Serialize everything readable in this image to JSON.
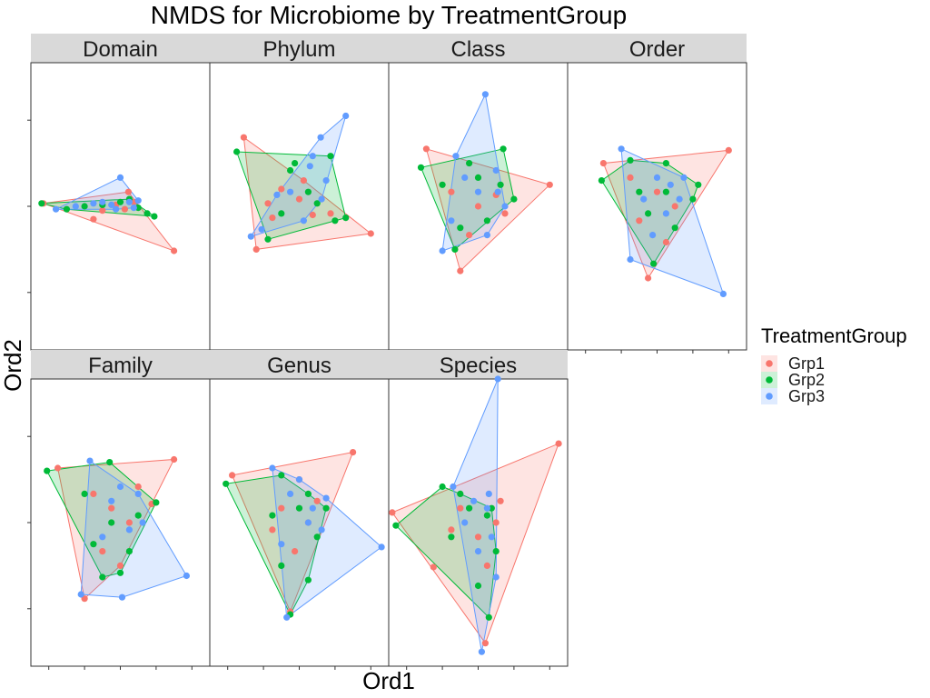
{
  "chart_data": {
    "type": "scatter",
    "title": "NMDS for Microbiome by TreatmentGroup",
    "xlabel": "Ord1",
    "ylabel": "Ord2",
    "grid": false,
    "hull": true,
    "legend": {
      "title": "TreatmentGroup",
      "placement": "right",
      "entries": [
        {
          "name": "Grp1",
          "color": "#F8766D"
        },
        {
          "name": "Grp2",
          "color": "#00BA38"
        },
        {
          "name": "Grp3",
          "color": "#619CFF"
        }
      ]
    },
    "xlim": [
      -1.0,
      1.0
    ],
    "ylim": [
      -1.0,
      1.0
    ],
    "x_ticks": [
      -0.8,
      -0.4,
      0.0,
      0.4,
      0.8
    ],
    "y_ticks": [
      -0.6,
      0.0,
      0.6
    ],
    "facets": [
      {
        "label": "Domain",
        "series": [
          {
            "name": "Grp1",
            "points": [
              [
                -0.86,
                0.02
              ],
              [
                -0.3,
                -0.09
              ],
              [
                0.09,
                0.1
              ],
              [
                0.6,
                -0.31
              ],
              [
                -0.2,
                -0.03
              ],
              [
                -0.05,
                0.01
              ],
              [
                0.05,
                -0.02
              ],
              [
                0.15,
                0.03
              ]
            ]
          },
          {
            "name": "Grp2",
            "points": [
              [
                -0.88,
                0.02
              ],
              [
                -0.6,
                -0.02
              ],
              [
                0.3,
                -0.05
              ],
              [
                0.38,
                -0.07
              ],
              [
                0.1,
                0.05
              ],
              [
                -0.4,
                0.0
              ],
              [
                -0.2,
                0.01
              ],
              [
                0.0,
                0.03
              ],
              [
                0.2,
                -0.01
              ]
            ]
          },
          {
            "name": "Grp3",
            "points": [
              [
                -0.72,
                -0.02
              ],
              [
                0.0,
                0.2
              ],
              [
                0.2,
                0.04
              ],
              [
                -0.5,
                0.0
              ],
              [
                -0.3,
                0.02
              ],
              [
                -0.1,
                0.01
              ],
              [
                0.1,
                0.03
              ],
              [
                -0.05,
                -0.02
              ],
              [
                0.15,
                -0.01
              ],
              [
                -0.2,
                0.03
              ]
            ]
          }
        ]
      },
      {
        "label": "Phylum",
        "series": [
          {
            "name": "Grp1",
            "points": [
              [
                -0.62,
                0.48
              ],
              [
                -0.48,
                -0.3
              ],
              [
                0.8,
                -0.19
              ],
              [
                0.35,
                -0.05
              ],
              [
                -0.35,
                0.02
              ],
              [
                -0.2,
                0.12
              ],
              [
                0.0,
                0.05
              ],
              [
                0.15,
                -0.06
              ],
              [
                -0.3,
                -0.08
              ],
              [
                0.05,
                0.18
              ]
            ]
          },
          {
            "name": "Grp2",
            "points": [
              [
                -0.7,
                0.38
              ],
              [
                -0.35,
                -0.23
              ],
              [
                0.52,
                -0.08
              ],
              [
                0.35,
                0.35
              ],
              [
                0.4,
                -0.1
              ],
              [
                -0.1,
                0.25
              ],
              [
                0.1,
                0.1
              ],
              [
                -0.2,
                -0.05
              ],
              [
                0.2,
                0.02
              ],
              [
                -0.05,
                0.3
              ]
            ]
          },
          {
            "name": "Grp3",
            "points": [
              [
                0.52,
                0.63
              ],
              [
                0.24,
                0.48
              ],
              [
                -0.54,
                -0.21
              ],
              [
                -0.42,
                -0.16
              ],
              [
                0.12,
                0.28
              ],
              [
                0.25,
                0.05
              ],
              [
                -0.1,
                0.1
              ],
              [
                0.05,
                -0.1
              ],
              [
                0.3,
                0.18
              ],
              [
                -0.25,
                0.08
              ],
              [
                0.15,
                0.35
              ]
            ]
          }
        ]
      },
      {
        "label": "Class",
        "series": [
          {
            "name": "Grp1",
            "points": [
              [
                -0.58,
                0.4
              ],
              [
                -0.2,
                -0.45
              ],
              [
                0.8,
                0.15
              ],
              [
                -0.3,
                0.1
              ],
              [
                0.0,
                0.0
              ],
              [
                0.2,
                0.08
              ],
              [
                -0.1,
                -0.2
              ],
              [
                0.3,
                -0.05
              ]
            ]
          },
          {
            "name": "Grp2",
            "points": [
              [
                -0.64,
                0.27
              ],
              [
                -0.26,
                -0.3
              ],
              [
                0.28,
                0.4
              ],
              [
                0.4,
                0.05
              ],
              [
                -0.4,
                0.15
              ],
              [
                -0.1,
                0.3
              ],
              [
                0.1,
                -0.1
              ],
              [
                0.25,
                0.15
              ],
              [
                -0.2,
                -0.15
              ],
              [
                0.0,
                0.2
              ]
            ]
          },
          {
            "name": "Grp3",
            "points": [
              [
                0.08,
                0.78
              ],
              [
                -0.4,
                -0.31
              ],
              [
                -0.25,
                0.35
              ],
              [
                -0.3,
                -0.1
              ],
              [
                0.2,
                0.25
              ],
              [
                0.0,
                0.1
              ],
              [
                0.3,
                0.0
              ],
              [
                -0.15,
                0.2
              ],
              [
                0.1,
                -0.2
              ],
              [
                0.22,
                0.1
              ]
            ]
          }
        ]
      },
      {
        "label": "Order",
        "series": [
          {
            "name": "Grp1",
            "points": [
              [
                -0.6,
                0.3
              ],
              [
                0.8,
                0.39
              ],
              [
                -0.1,
                -0.5
              ],
              [
                -0.3,
                0.2
              ],
              [
                0.0,
                0.1
              ],
              [
                0.2,
                0.0
              ],
              [
                -0.2,
                -0.1
              ],
              [
                0.1,
                -0.25
              ]
            ]
          },
          {
            "name": "Grp2",
            "points": [
              [
                -0.62,
                0.18
              ],
              [
                -0.3,
                0.32
              ],
              [
                0.1,
                0.3
              ],
              [
                0.46,
                0.15
              ],
              [
                0.4,
                0.05
              ],
              [
                -0.04,
                -0.4
              ],
              [
                -0.2,
                0.1
              ],
              [
                0.1,
                0.1
              ],
              [
                0.2,
                -0.15
              ],
              [
                -0.1,
                -0.05
              ]
            ]
          },
          {
            "name": "Grp3",
            "points": [
              [
                -0.4,
                0.4
              ],
              [
                0.74,
                -0.61
              ],
              [
                -0.3,
                -0.37
              ],
              [
                0.3,
                0.2
              ],
              [
                0.0,
                0.2
              ],
              [
                -0.15,
                0.05
              ],
              [
                0.1,
                -0.05
              ],
              [
                0.25,
                0.05
              ],
              [
                -0.05,
                -0.2
              ],
              [
                0.15,
                0.15
              ]
            ]
          }
        ]
      },
      {
        "label": "Family",
        "series": [
          {
            "name": "Grp1",
            "points": [
              [
                -0.7,
                0.38
              ],
              [
                0.6,
                0.44
              ],
              [
                -0.4,
                -0.53
              ],
              [
                0.35,
                0.13
              ],
              [
                -0.3,
                0.2
              ],
              [
                -0.1,
                0.1
              ],
              [
                0.1,
                0.0
              ],
              [
                -0.2,
                -0.2
              ],
              [
                0.0,
                -0.3
              ],
              [
                0.2,
                0.25
              ]
            ]
          },
          {
            "name": "Grp2",
            "points": [
              [
                -0.82,
                0.36
              ],
              [
                -0.12,
                0.42
              ],
              [
                0.4,
                0.14
              ],
              [
                0.0,
                -0.35
              ],
              [
                -0.2,
                -0.38
              ],
              [
                -0.4,
                0.2
              ],
              [
                -0.1,
                0.0
              ],
              [
                0.2,
                0.05
              ],
              [
                -0.3,
                -0.15
              ],
              [
                0.1,
                -0.2
              ]
            ]
          },
          {
            "name": "Grp3",
            "points": [
              [
                -0.34,
                0.43
              ],
              [
                0.74,
                -0.37
              ],
              [
                -0.44,
                -0.5
              ],
              [
                0.02,
                -0.52
              ],
              [
                0.2,
                0.2
              ],
              [
                -0.1,
                0.15
              ],
              [
                0.1,
                -0.05
              ],
              [
                -0.2,
                -0.1
              ],
              [
                0.25,
                0.0
              ],
              [
                0.0,
                0.25
              ]
            ]
          }
        ]
      },
      {
        "label": "Genus",
        "series": [
          {
            "name": "Grp1",
            "points": [
              [
                -0.75,
                0.33
              ],
              [
                0.6,
                0.49
              ],
              [
                -0.1,
                -0.62
              ],
              [
                0.0,
                0.3
              ],
              [
                -0.2,
                0.1
              ],
              [
                0.1,
                0.0
              ],
              [
                -0.05,
                -0.2
              ],
              [
                0.2,
                0.15
              ],
              [
                -0.3,
                -0.05
              ]
            ]
          },
          {
            "name": "Grp2",
            "points": [
              [
                -0.82,
                0.27
              ],
              [
                -0.2,
                0.33
              ],
              [
                0.3,
                0.1
              ],
              [
                0.1,
                -0.4
              ],
              [
                -0.1,
                -0.64
              ],
              [
                -0.3,
                0.05
              ],
              [
                0.0,
                0.1
              ],
              [
                0.2,
                -0.1
              ],
              [
                -0.2,
                -0.3
              ],
              [
                0.1,
                0.2
              ]
            ]
          },
          {
            "name": "Grp3",
            "points": [
              [
                -0.3,
                0.38
              ],
              [
                0.92,
                -0.17
              ],
              [
                -0.14,
                -0.66
              ],
              [
                0.3,
                0.17
              ],
              [
                -0.1,
                0.2
              ],
              [
                0.1,
                0.0
              ],
              [
                -0.2,
                -0.15
              ],
              [
                0.25,
                -0.05
              ],
              [
                0.0,
                0.3
              ],
              [
                0.15,
                0.1
              ]
            ]
          }
        ]
      },
      {
        "label": "Species",
        "series": [
          {
            "name": "Grp1",
            "points": [
              [
                -0.96,
                0.07
              ],
              [
                0.9,
                0.55
              ],
              [
                0.08,
                -0.84
              ],
              [
                -0.5,
                -0.31
              ],
              [
                -0.2,
                0.1
              ],
              [
                0.0,
                -0.1
              ],
              [
                0.2,
                0.0
              ],
              [
                -0.3,
                -0.05
              ],
              [
                0.1,
                -0.3
              ],
              [
                0.25,
                0.15
              ]
            ]
          },
          {
            "name": "Grp2",
            "points": [
              [
                -0.92,
                -0.02
              ],
              [
                -0.4,
                0.25
              ],
              [
                0.12,
                -0.66
              ],
              [
                0.0,
                -0.44
              ],
              [
                -0.3,
                -0.1
              ],
              [
                -0.1,
                0.1
              ],
              [
                0.1,
                0.05
              ],
              [
                0.2,
                -0.2
              ],
              [
                -0.2,
                0.2
              ],
              [
                0.15,
                0.1
              ]
            ]
          },
          {
            "name": "Grp3",
            "points": [
              [
                0.22,
                1.0
              ],
              [
                -0.28,
                0.25
              ],
              [
                0.2,
                -0.38
              ],
              [
                0.04,
                -0.9
              ],
              [
                0.1,
                0.1
              ],
              [
                0.0,
                -0.2
              ],
              [
                -0.15,
                0.0
              ],
              [
                0.15,
                -0.1
              ],
              [
                -0.05,
                0.15
              ],
              [
                0.12,
                0.2
              ]
            ]
          }
        ]
      }
    ]
  }
}
